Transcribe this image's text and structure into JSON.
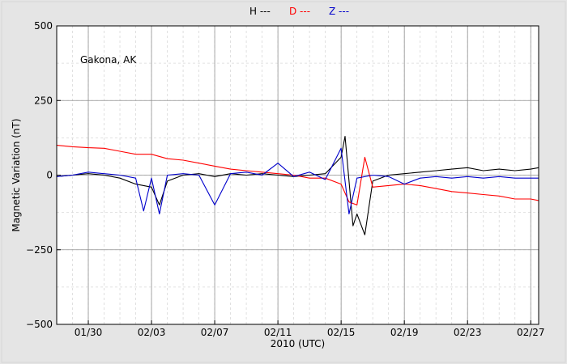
{
  "chart_data": {
    "type": "line",
    "title": "",
    "annotation": "Gakona, AK",
    "xlabel": "2010 (UTC)",
    "ylabel": "Magnetic Variation (nT)",
    "xlim": [
      "2010-01-28",
      "2010-02-27T12:00"
    ],
    "ylim": [
      -500,
      500
    ],
    "xticks": [
      "01/30",
      "02/03",
      "02/07",
      "02/11",
      "02/15",
      "02/19",
      "02/23",
      "02/27"
    ],
    "yticks": [
      "500",
      "250",
      "0",
      "−250",
      "−500"
    ],
    "grid": true,
    "legend": {
      "position": "top-center",
      "entries": [
        "H ---",
        "D ---",
        "Z ---"
      ]
    },
    "colors": {
      "H": "#000000",
      "D": "#ff0000",
      "Z": "#0000cc"
    },
    "series": [
      {
        "key": "H",
        "x": [
          "01/28",
          "01/29",
          "01/30",
          "01/31",
          "02/01",
          "02/02",
          "02/03",
          "02/03T12",
          "02/04",
          "02/05",
          "02/06",
          "02/07",
          "02/08",
          "02/09",
          "02/10",
          "02/11",
          "02/12",
          "02/13",
          "02/14",
          "02/15",
          "02/15T06",
          "02/15T18",
          "02/16",
          "02/16T12",
          "02/17",
          "02/18",
          "02/19",
          "02/20",
          "02/21",
          "02/22",
          "02/23",
          "02/24",
          "02/25",
          "02/26",
          "02/27",
          "02/27T12"
        ],
        "y": [
          -5,
          0,
          5,
          0,
          -10,
          -30,
          -40,
          -100,
          -20,
          0,
          5,
          -5,
          5,
          0,
          5,
          0,
          -5,
          0,
          5,
          60,
          130,
          -170,
          -130,
          -200,
          -20,
          0,
          5,
          10,
          15,
          20,
          25,
          15,
          20,
          15,
          20,
          25
        ]
      },
      {
        "key": "D",
        "x": [
          "01/28",
          "01/29",
          "01/30",
          "01/31",
          "02/01",
          "02/02",
          "02/03",
          "02/04",
          "02/05",
          "02/06",
          "02/07",
          "02/08",
          "02/09",
          "02/10",
          "02/11",
          "02/12",
          "02/13",
          "02/14",
          "02/15",
          "02/15T12",
          "02/16",
          "02/16T12",
          "02/17",
          "02/18",
          "02/19",
          "02/20",
          "02/21",
          "02/22",
          "02/23",
          "02/24",
          "02/25",
          "02/26",
          "02/27",
          "02/27T12"
        ],
        "y": [
          100,
          95,
          92,
          90,
          80,
          70,
          70,
          55,
          50,
          40,
          30,
          20,
          15,
          10,
          5,
          0,
          -10,
          -10,
          -30,
          -90,
          -100,
          60,
          -40,
          -35,
          -30,
          -35,
          -45,
          -55,
          -60,
          -65,
          -70,
          -80,
          -80,
          -85
        ]
      },
      {
        "key": "Z",
        "x": [
          "01/28",
          "01/29",
          "01/30",
          "01/31",
          "02/01",
          "02/02",
          "02/02T12",
          "02/03",
          "02/03T12",
          "02/04",
          "02/05",
          "02/06",
          "02/07",
          "02/08",
          "02/09",
          "02/10",
          "02/11",
          "02/12",
          "02/13",
          "02/14",
          "02/15",
          "02/15T12",
          "02/16",
          "02/17",
          "02/18",
          "02/19",
          "02/20",
          "02/21",
          "02/22",
          "02/23",
          "02/24",
          "02/25",
          "02/26",
          "02/27",
          "02/27T12"
        ],
        "y": [
          -5,
          0,
          10,
          5,
          0,
          -10,
          -120,
          -10,
          -130,
          0,
          5,
          0,
          -100,
          5,
          10,
          0,
          40,
          -5,
          10,
          -15,
          90,
          -130,
          -10,
          0,
          -5,
          -30,
          -10,
          -5,
          -10,
          -5,
          -10,
          -5,
          -10,
          -10,
          -10
        ]
      }
    ]
  }
}
